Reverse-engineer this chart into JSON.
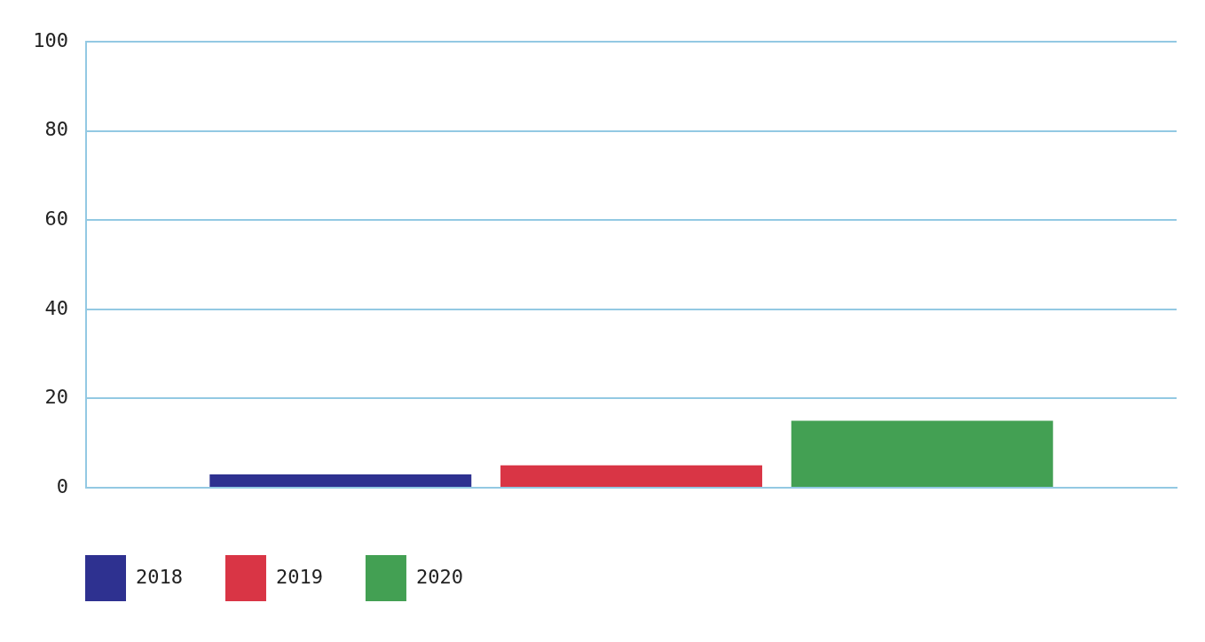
{
  "chart_data": {
    "type": "bar",
    "categories": [
      null
    ],
    "series": [
      {
        "name": "2018",
        "color": "#2e3190",
        "values": [
          3
        ]
      },
      {
        "name": "2019",
        "color": "#d93545",
        "values": [
          5
        ]
      },
      {
        "name": "2020",
        "color": "#43a053",
        "values": [
          15
        ]
      }
    ],
    "ylim": [
      0,
      100
    ],
    "yticks": [
      0,
      20,
      40,
      60,
      80,
      100
    ],
    "grid": "y",
    "legend": "bottom left",
    "tick_labels": "y"
  }
}
